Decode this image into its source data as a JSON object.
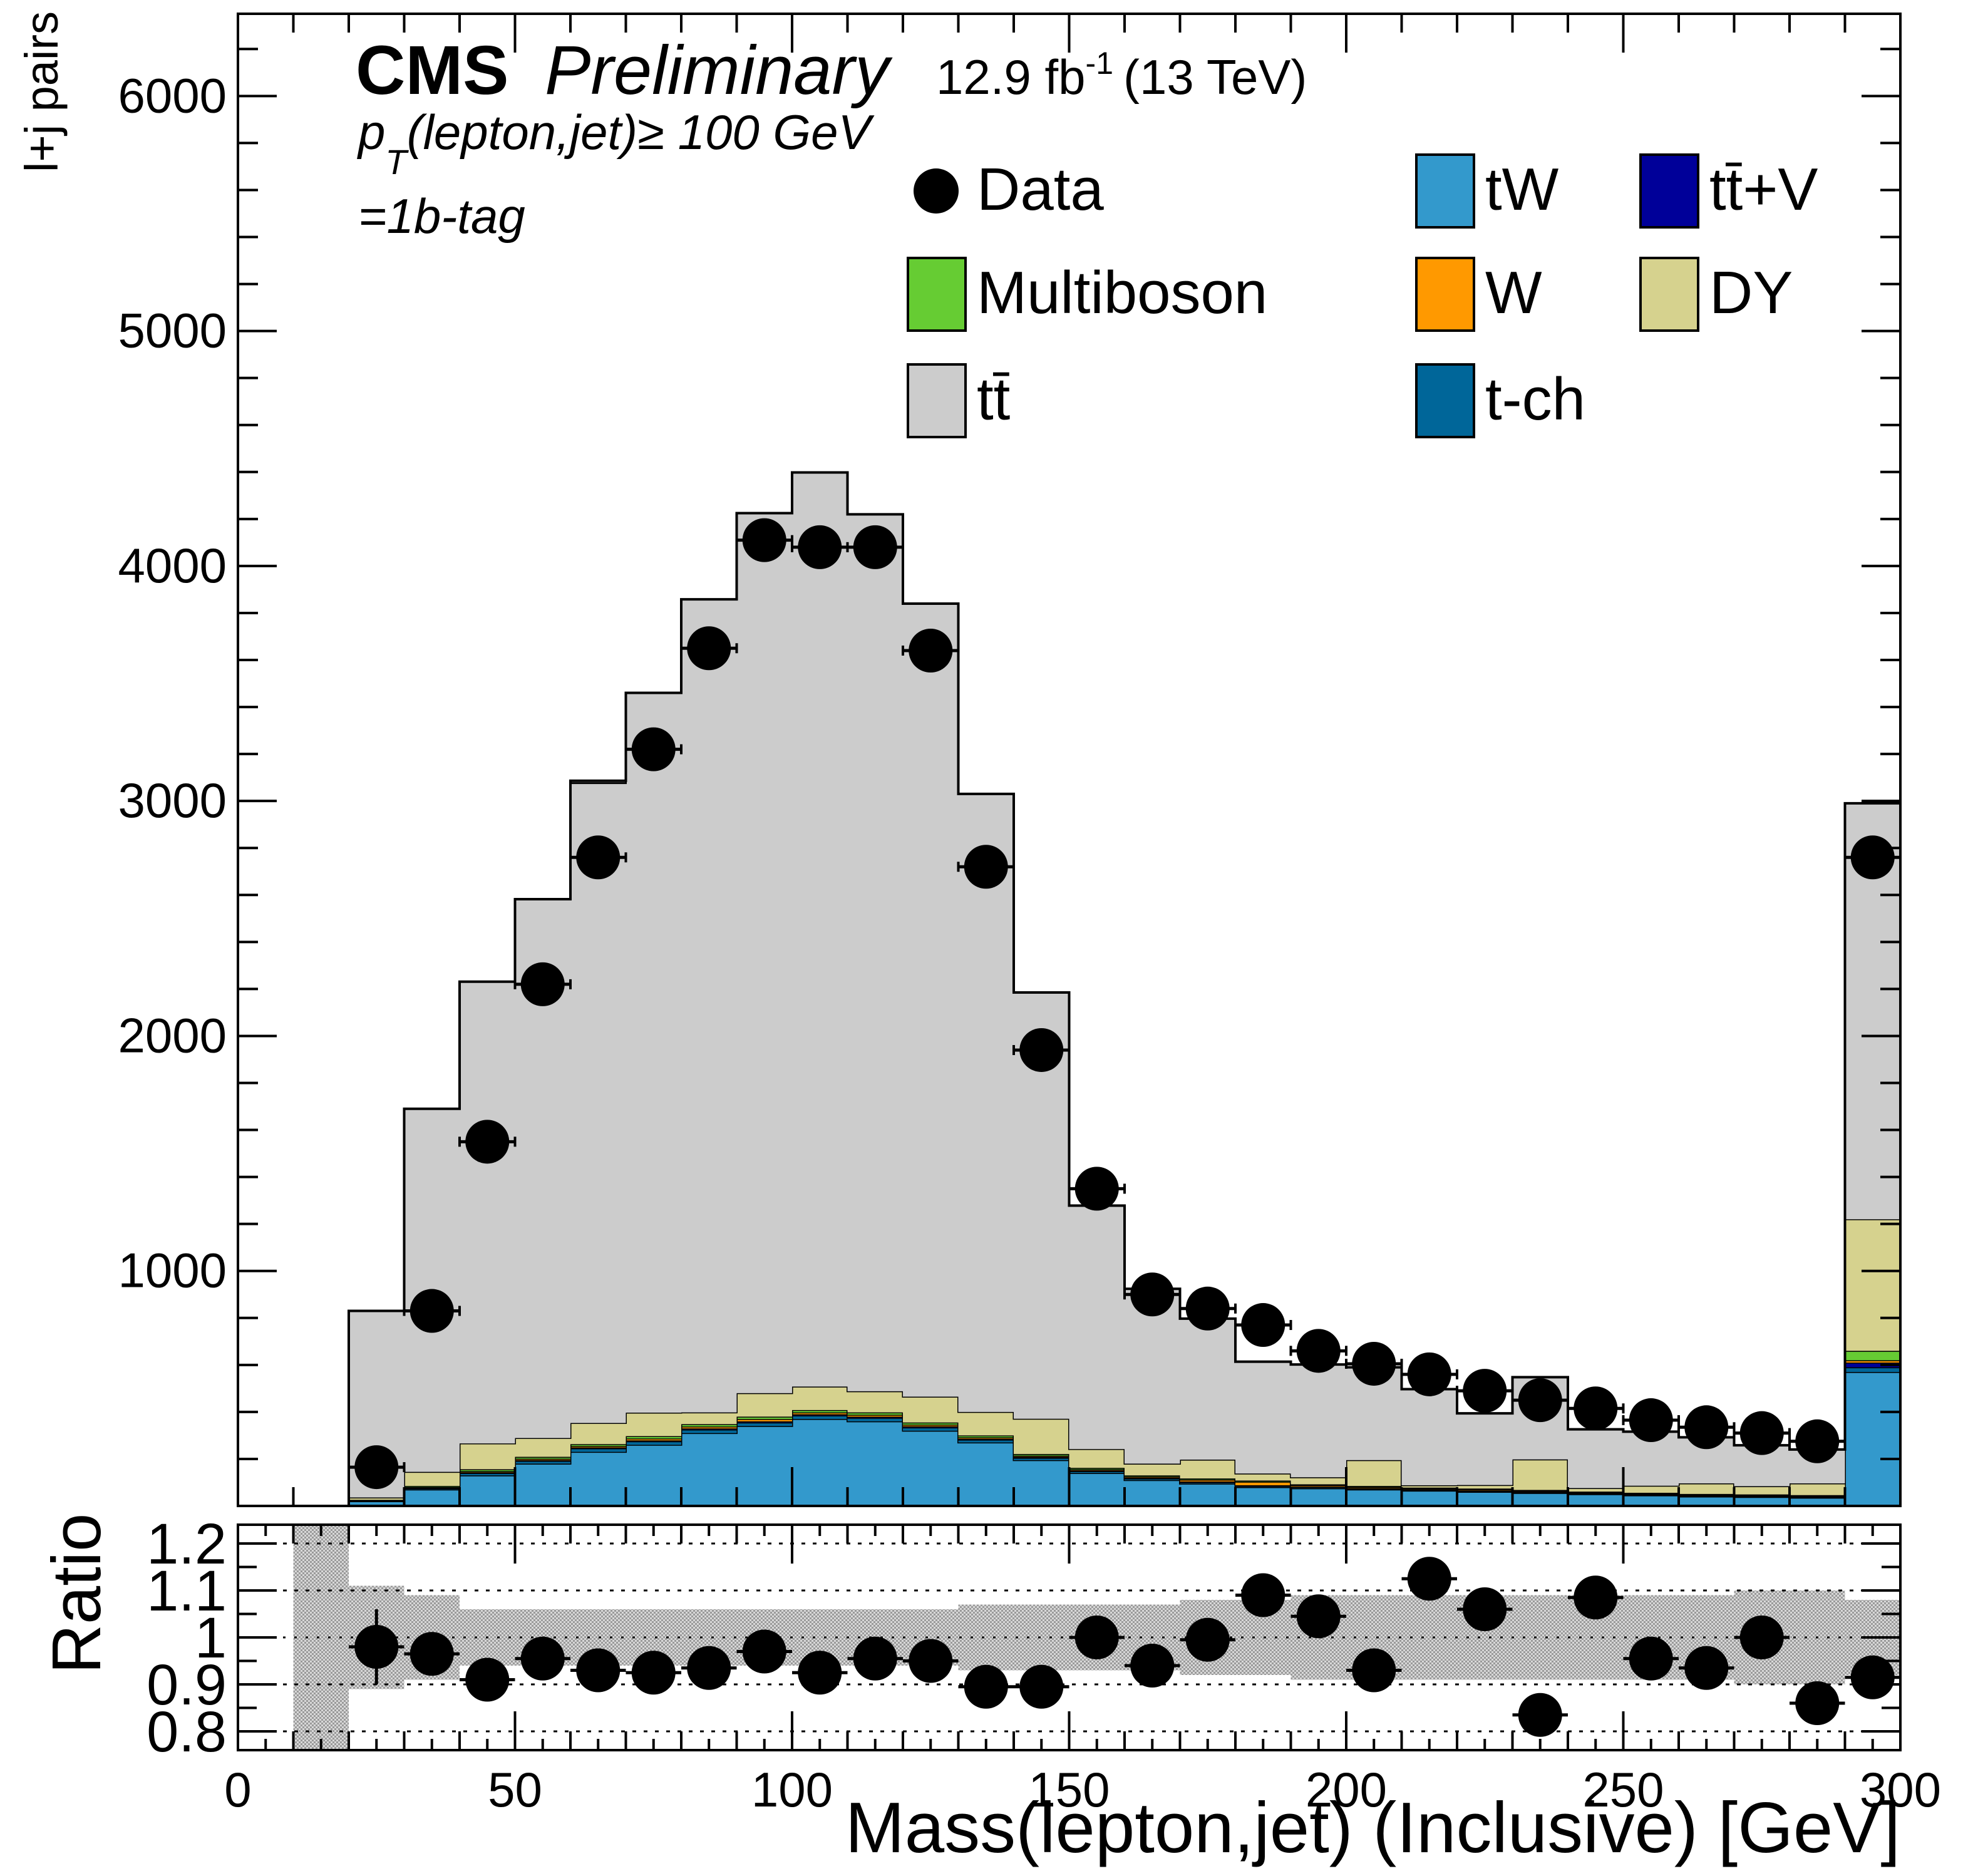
{
  "header": {
    "cms": "CMS",
    "preliminary": "Preliminary",
    "lumi_prefix": "12.9 fb",
    "lumi_exp": "-1",
    "lumi_suffix": "(13 TeV)",
    "cut1_p": "p",
    "cut1_sub": "T",
    "cut1_rest": "(lepton,jet)≥ 100 GeV",
    "cut2": "=1b-tag"
  },
  "legend": [
    {
      "label": "Data",
      "style": "marker",
      "color": "#000000"
    },
    {
      "label": "tW",
      "style": "fill",
      "color": "#3399cc"
    },
    {
      "label": "tt̄+V",
      "style": "fill",
      "color": "#000099"
    },
    {
      "label": "Multiboson",
      "style": "fill",
      "color": "#66cc33"
    },
    {
      "label": "W",
      "style": "fill",
      "color": "#ff9900"
    },
    {
      "label": "DY",
      "style": "fill",
      "color": "#d6d28e"
    },
    {
      "label": "tt̄",
      "style": "fill",
      "color": "#cccccc"
    },
    {
      "label": "t-ch",
      "style": "fill",
      "color": "#006699"
    }
  ],
  "chart_data": [
    {
      "type": "area",
      "panel": "main",
      "ylabel": "l+j pairs",
      "xlim": [
        0,
        300
      ],
      "ylim": [
        0,
        6350
      ],
      "yticks": [
        1000,
        2000,
        3000,
        4000,
        5000,
        6000
      ],
      "bin_edges": [
        10,
        20,
        30,
        40,
        50,
        60,
        70,
        80,
        90,
        100,
        110,
        120,
        130,
        140,
        150,
        160,
        170,
        180,
        190,
        200,
        210,
        220,
        230,
        240,
        250,
        260,
        270,
        280,
        290,
        300
      ],
      "stack_colors": {
        "tW": "#3399cc",
        "t-ch": "#006699",
        "tt̄+V": "#000099",
        "W": "#ff9900",
        "Multiboson": "#66cc33",
        "DY": "#d6d28e",
        "tt̄": "#cccccc"
      },
      "series": [
        {
          "name": "tW",
          "values": [
            0,
            20,
            70,
            130,
            180,
            230,
            260,
            310,
            340,
            370,
            360,
            320,
            270,
            195,
            140,
            110,
            95,
            80,
            75,
            70,
            65,
            60,
            55,
            50,
            45,
            40,
            38,
            35,
            570
          ]
        },
        {
          "name": "t-ch",
          "values": [
            0,
            2,
            5,
            10,
            12,
            15,
            15,
            15,
            15,
            15,
            15,
            14,
            12,
            10,
            8,
            7,
            6,
            5,
            5,
            4,
            4,
            4,
            4,
            3,
            3,
            3,
            3,
            3,
            20
          ]
        },
        {
          "name": "tt̄+V",
          "values": [
            0,
            1,
            2,
            3,
            3,
            4,
            4,
            5,
            5,
            5,
            5,
            5,
            4,
            4,
            3,
            3,
            3,
            3,
            2,
            2,
            2,
            2,
            2,
            2,
            2,
            2,
            2,
            2,
            20
          ]
        },
        {
          "name": "W",
          "values": [
            0,
            1,
            3,
            5,
            6,
            6,
            8,
            8,
            10,
            8,
            8,
            7,
            6,
            5,
            5,
            5,
            8,
            15,
            6,
            5,
            4,
            5,
            4,
            3,
            3,
            3,
            3,
            3,
            10
          ]
        },
        {
          "name": "Multiboson",
          "values": [
            0,
            2,
            5,
            8,
            8,
            8,
            10,
            10,
            10,
            10,
            10,
            9,
            8,
            7,
            6,
            5,
            5,
            5,
            4,
            4,
            3,
            3,
            3,
            3,
            3,
            3,
            3,
            3,
            40
          ]
        },
        {
          "name": "DY",
          "values": [
            0,
            10,
            60,
            110,
            80,
            90,
            100,
            50,
            100,
            100,
            90,
            110,
            100,
            150,
            80,
            50,
            80,
            30,
            30,
            110,
            10,
            15,
            130,
            15,
            30,
            45,
            35,
            50,
            560
          ]
        },
        {
          "name": "tt̄",
          "values": [
            0,
            794,
            1545,
            1965,
            2293,
            2723,
            3063,
            3460,
            3745,
            3890,
            3732,
            3375,
            2630,
            1814,
            1036,
            744,
            600,
            476,
            480,
            395,
            409,
            305,
            350,
            250,
            230,
            196,
            174,
            144,
            1770
          ]
        }
      ],
      "total_mc": [
        0,
        830,
        1690,
        2231,
        2582,
        3086,
        3460,
        3858,
        4225,
        4398,
        4220,
        3840,
        3030,
        2185,
        1278,
        924,
        797,
        614,
        602,
        590,
        497,
        394,
        548,
        326,
        316,
        292,
        258,
        240,
        2990
      ],
      "data_points": {
        "name": "Data",
        "x": [
          15,
          25,
          35,
          45,
          55,
          65,
          75,
          85,
          95,
          105,
          115,
          125,
          135,
          145,
          155,
          165,
          175,
          185,
          195,
          205,
          215,
          225,
          235,
          245,
          255,
          265,
          275,
          285,
          295
        ],
        "y": [
          0,
          165,
          830,
          1550,
          2220,
          2760,
          3220,
          3650,
          4110,
          4080,
          4080,
          3640,
          2720,
          1940,
          1350,
          900,
          840,
          770,
          660,
          605,
          560,
          490,
          450,
          415,
          365,
          335,
          310,
          275,
          2760
        ]
      }
    },
    {
      "type": "scatter",
      "panel": "ratio",
      "ylabel": "Ratio",
      "xlabel": "Mass(lepton,jet) (Inclusive) [GeV]",
      "xlim": [
        0,
        300
      ],
      "ylim": [
        0.76,
        1.24
      ],
      "yticks": [
        0.8,
        0.9,
        1,
        1.1,
        1.2
      ],
      "yticklabels": [
        "0.8",
        "0.9",
        "1",
        "1.1",
        "1.2"
      ],
      "xticks": [
        0,
        50,
        100,
        150,
        200,
        250,
        300
      ],
      "x": [
        25,
        35,
        45,
        55,
        65,
        75,
        85,
        95,
        105,
        115,
        125,
        135,
        145,
        155,
        165,
        175,
        185,
        195,
        205,
        215,
        225,
        235,
        245,
        255,
        265,
        275,
        285,
        295
      ],
      "y": [
        0.98,
        0.965,
        0.91,
        0.955,
        0.93,
        0.925,
        0.935,
        0.97,
        0.925,
        0.955,
        0.95,
        0.895,
        0.895,
        1.0,
        0.94,
        0.995,
        1.09,
        1.045,
        0.93,
        1.125,
        1.06,
        0.835,
        1.085,
        0.955,
        0.935,
        1.0,
        0.86,
        0.915
      ],
      "yerr": [
        0.08,
        0.012,
        0.012,
        0.012,
        0.012,
        0.012,
        0.012,
        0.012,
        0.012,
        0.012,
        0.012,
        0.012,
        0.012,
        0.015,
        0.015,
        0.015,
        0.02,
        0.02,
        0.02,
        0.03,
        0.03,
        0.03,
        0.035,
        0.035,
        0.04,
        0.04,
        0.03,
        0.012
      ],
      "band_edges": [
        10,
        20,
        30,
        40,
        50,
        60,
        70,
        80,
        90,
        100,
        110,
        120,
        130,
        140,
        150,
        160,
        170,
        180,
        190,
        200,
        210,
        220,
        230,
        240,
        250,
        260,
        270,
        280,
        290,
        300
      ],
      "band_low": [
        0.76,
        0.89,
        0.91,
        0.94,
        0.94,
        0.94,
        0.94,
        0.94,
        0.94,
        0.94,
        0.94,
        0.94,
        0.93,
        0.93,
        0.93,
        0.93,
        0.92,
        0.92,
        0.91,
        0.91,
        0.91,
        0.91,
        0.91,
        0.91,
        0.91,
        0.91,
        0.9,
        0.9,
        0.92
      ],
      "band_high": [
        1.24,
        1.11,
        1.09,
        1.06,
        1.06,
        1.06,
        1.06,
        1.06,
        1.06,
        1.06,
        1.06,
        1.06,
        1.07,
        1.07,
        1.07,
        1.07,
        1.08,
        1.08,
        1.09,
        1.09,
        1.09,
        1.09,
        1.09,
        1.09,
        1.09,
        1.09,
        1.1,
        1.1,
        1.08
      ],
      "reference_lines": [
        0.8,
        0.9,
        1.0,
        1.1,
        1.2
      ]
    }
  ]
}
